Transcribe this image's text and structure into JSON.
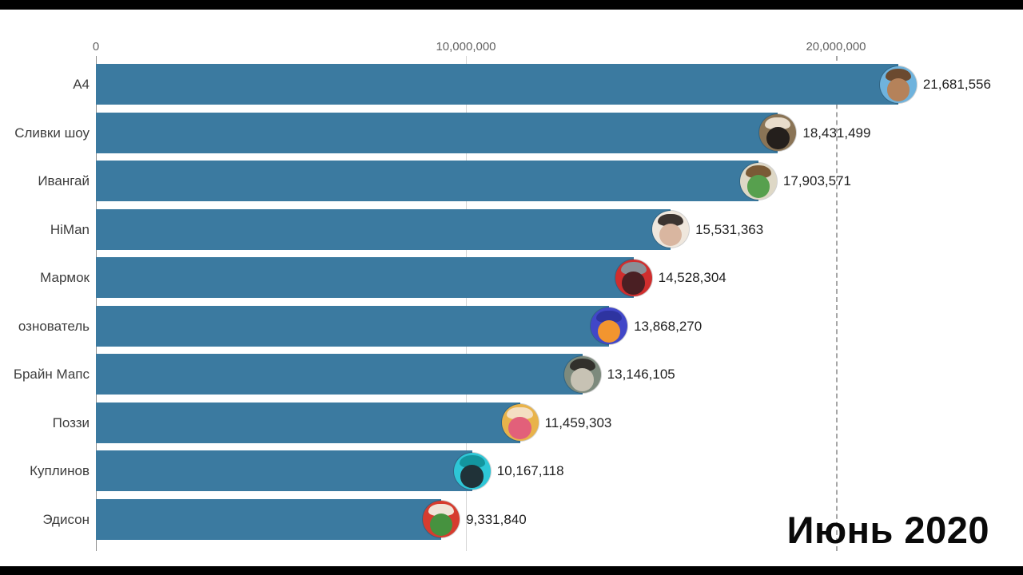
{
  "chart_data": {
    "type": "bar",
    "orientation": "horizontal",
    "title": "",
    "date_label": "Июнь 2020",
    "bar_color": "#3b7aa0",
    "x_axis": {
      "ticks": [
        0,
        10000000,
        20000000
      ],
      "tick_labels": [
        "0",
        "10,000,000",
        "20,000,000"
      ],
      "max": 22500000,
      "grid": true
    },
    "categories": [
      "А4",
      "Сливки шоу",
      "Ивангай",
      "HiMan",
      "Мармок",
      "ознователь",
      "Брайн Мапс",
      "Поззи",
      "Куплинов",
      "Эдисон"
    ],
    "values": [
      21681556,
      18431499,
      17903571,
      15531363,
      14528304,
      13868270,
      13146105,
      11459303,
      10167118,
      9331840
    ],
    "value_labels": [
      "21,681,556",
      "18,431,499",
      "17,903,571",
      "15,531,363",
      "14,528,304",
      "13,868,270",
      "13,146,105",
      "11,459,303",
      "10,167,118",
      "9,331,840"
    ],
    "avatars": [
      {
        "name": "avatar-a4",
        "bg": "#6fb3dd",
        "body": "#b5825a",
        "top": "#6b4a2f"
      },
      {
        "name": "avatar-slivki-show",
        "bg": "#8a7456",
        "body": "#241f1c",
        "top": "#e8dccb"
      },
      {
        "name": "avatar-ivangay",
        "bg": "#ded8c6",
        "body": "#57a04e",
        "top": "#7a5a36"
      },
      {
        "name": "avatar-himan",
        "bg": "#efe7dd",
        "body": "#d9b6a0",
        "top": "#3c3430"
      },
      {
        "name": "avatar-marmok",
        "bg": "#cf2e2e",
        "body": "#4a1f23",
        "top": "#8a8f96"
      },
      {
        "name": "avatar-osnovatel",
        "bg": "#4147c8",
        "body": "#f2952f",
        "top": "#2e34a0"
      },
      {
        "name": "avatar-brian-maps",
        "bg": "#7d8a7d",
        "body": "#c7c2b4",
        "top": "#32302c"
      },
      {
        "name": "avatar-pozzy",
        "bg": "#e8b34b",
        "body": "#e2607a",
        "top": "#f4dfc2"
      },
      {
        "name": "avatar-kuplinov",
        "bg": "#2ec6d6",
        "body": "#203238",
        "top": "#13969f"
      },
      {
        "name": "avatar-edison",
        "bg": "#d63c2f",
        "body": "#46923f",
        "top": "#f0e4d8"
      }
    ]
  }
}
